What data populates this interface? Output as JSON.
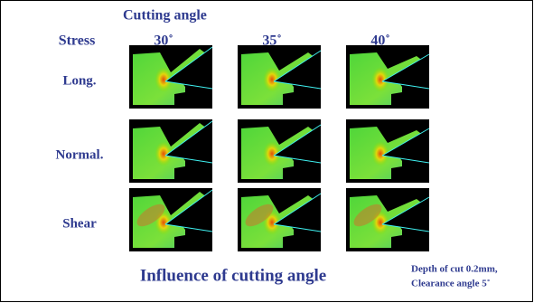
{
  "header": {
    "cutting_angle": "Cutting angle",
    "stress": "Stress",
    "angles": [
      "30˚",
      "35˚",
      "40˚"
    ]
  },
  "rows": [
    "Long.",
    "Normal.",
    "Shear"
  ],
  "footer": {
    "title": "Influence of cutting angle",
    "note": [
      "Depth of cut 0.2mm,",
      "Clearance angle 5˚"
    ]
  }
}
